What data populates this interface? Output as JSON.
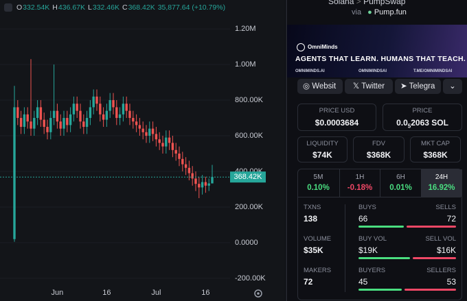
{
  "chart_data": {
    "type": "candlestick",
    "ohlc": [
      {
        "key": "O",
        "label": "332.54K"
      },
      {
        "key": "H",
        "label": "436.67K"
      },
      {
        "key": "L",
        "label": "332.46K"
      },
      {
        "key": "C",
        "label": "368.42K"
      }
    ],
    "change": "35,877.64 (+10.79%)",
    "categories": [
      null,
      null,
      null,
      null,
      null,
      null,
      null,
      null,
      null,
      null,
      null,
      null,
      null,
      "Jun",
      null,
      null,
      null,
      null,
      null,
      null,
      null,
      null,
      null,
      null,
      null,
      null,
      null,
      null,
      "16",
      null,
      null,
      null,
      null,
      null,
      null,
      null,
      null,
      null,
      null,
      null,
      null,
      null,
      null,
      "Jul",
      null,
      null,
      null,
      null,
      null,
      null,
      null,
      null,
      null,
      null,
      null,
      null,
      null,
      null,
      "16",
      null,
      null
    ],
    "open": [
      20000,
      760000,
      700000,
      650000,
      720000,
      680000,
      640000,
      700000,
      760000,
      690000,
      650000,
      620000,
      700000,
      740000,
      680000,
      640000,
      700000,
      660000,
      720000,
      780000,
      740000,
      680000,
      650000,
      700000,
      760000,
      820000,
      780000,
      720000,
      690000,
      740000,
      800000,
      760000,
      700000,
      720000,
      780000,
      740000,
      700000,
      680000,
      660000,
      640000,
      620000,
      600000,
      640000,
      610000,
      580000,
      560000,
      540000,
      590000,
      560000,
      520000,
      500000,
      470000,
      440000,
      420000,
      390000,
      360000,
      330000,
      310000,
      340000,
      320000,
      332540
    ],
    "high": [
      880000,
      800000,
      740000,
      760000,
      760000,
      1030000,
      740000,
      800000,
      800000,
      730000,
      690000,
      740000,
      1000000,
      780000,
      720000,
      740000,
      740000,
      760000,
      820000,
      820000,
      780000,
      720000,
      740000,
      800000,
      860000,
      860000,
      820000,
      760000,
      780000,
      840000,
      840000,
      800000,
      760000,
      820000,
      820000,
      780000,
      740000,
      720000,
      700000,
      680000,
      660000,
      680000,
      680000,
      650000,
      620000,
      600000,
      630000,
      630000,
      600000,
      560000,
      540000,
      510000,
      480000,
      460000,
      430000,
      400000,
      370000,
      380000,
      370000,
      360000,
      436670
    ],
    "low": [
      5000,
      660000,
      610000,
      610000,
      640000,
      600000,
      600000,
      660000,
      650000,
      610000,
      580000,
      580000,
      660000,
      640000,
      600000,
      600000,
      620000,
      620000,
      680000,
      700000,
      640000,
      610000,
      610000,
      660000,
      720000,
      740000,
      680000,
      650000,
      650000,
      700000,
      720000,
      660000,
      660000,
      680000,
      700000,
      660000,
      640000,
      620000,
      600000,
      580000,
      560000,
      560000,
      570000,
      540000,
      520000,
      500000,
      500000,
      520000,
      480000,
      460000,
      430000,
      400000,
      380000,
      350000,
      320000,
      290000,
      250000,
      270000,
      280000,
      290000,
      332460
    ],
    "close": [
      760000,
      700000,
      650000,
      720000,
      680000,
      640000,
      700000,
      760000,
      690000,
      650000,
      620000,
      700000,
      740000,
      680000,
      640000,
      700000,
      660000,
      720000,
      780000,
      740000,
      680000,
      650000,
      700000,
      760000,
      820000,
      780000,
      720000,
      690000,
      740000,
      800000,
      760000,
      700000,
      720000,
      780000,
      740000,
      700000,
      680000,
      660000,
      640000,
      620000,
      600000,
      640000,
      610000,
      580000,
      560000,
      540000,
      590000,
      560000,
      520000,
      500000,
      470000,
      440000,
      420000,
      390000,
      360000,
      330000,
      310000,
      340000,
      320000,
      332540,
      368420
    ],
    "up_color": "#26a69a",
    "down_color": "#ef5350",
    "ylim": [
      -235000,
      1285000
    ],
    "yticks": [
      {
        "value": -200000,
        "label": "-200.00K"
      },
      {
        "value": 0,
        "label": "0.0000"
      },
      {
        "value": 200000,
        "label": "200.00K"
      },
      {
        "value": 400000,
        "label": "400.00K"
      },
      {
        "value": 600000,
        "label": "600.00K"
      },
      {
        "value": 800000,
        "label": "800.00K"
      },
      {
        "value": 1000000,
        "label": "1.00M"
      },
      {
        "value": 1200000,
        "label": "1.20M"
      }
    ],
    "price_line": {
      "value": 368420,
      "label": "368.42K"
    }
  },
  "pair": {
    "chain": "Solana",
    "dex": "PumpSwap",
    "via": "via",
    "launchpad": "Pump.fun"
  },
  "banner": {
    "brand": "OmniMinds",
    "tagline": "AGENTS THAT LEARN. HUMANS THAT TEACH.",
    "links": [
      "OMNIMINDS.AI",
      "OMNIMINDSAI",
      "T.ME/OMNIMINDSAI"
    ]
  },
  "buttons": [
    "Websit",
    "Twitter",
    "Telegra"
  ],
  "price_usd": {
    "label": "PRICE USD",
    "value": "$0.0003684"
  },
  "price_native": {
    "label": "PRICE",
    "lead": "0.0",
    "zeros": "5",
    "rest": "2063 SOL"
  },
  "metrics": [
    {
      "label": "LIQUIDITY",
      "value": "$74K"
    },
    {
      "label": "FDV",
      "value": "$368K"
    },
    {
      "label": "MKT CAP",
      "value": "$368K"
    }
  ],
  "timeframes": [
    {
      "label": "5M",
      "change": "0.10%"
    },
    {
      "label": "1H",
      "change": "-0.18%"
    },
    {
      "label": "6H",
      "change": "0.01%"
    },
    {
      "label": "24H",
      "change": "16.92%"
    }
  ],
  "selected_timeframe": 3,
  "stats": {
    "txns": {
      "label": "TXNS",
      "value": 138
    },
    "volume": {
      "label": "VOLUME",
      "value": "$35K"
    },
    "makers": {
      "label": "MAKERS",
      "value": 72
    },
    "pairs": [
      {
        "left_label": "BUYS",
        "left": {
          "value": 66,
          "label": "66"
        },
        "right_label": "SELLS",
        "right": {
          "value": 72,
          "label": "72"
        }
      },
      {
        "left_label": "BUY VOL",
        "left": {
          "value": 19000,
          "label": "$19K"
        },
        "right_label": "SELL VOL",
        "right": {
          "value": 16000,
          "label": "$16K"
        }
      },
      {
        "left_label": "BUYERS",
        "left": {
          "value": 45,
          "label": "45"
        },
        "right_label": "SELLERS",
        "right": {
          "value": 53,
          "label": "53"
        }
      }
    ]
  }
}
